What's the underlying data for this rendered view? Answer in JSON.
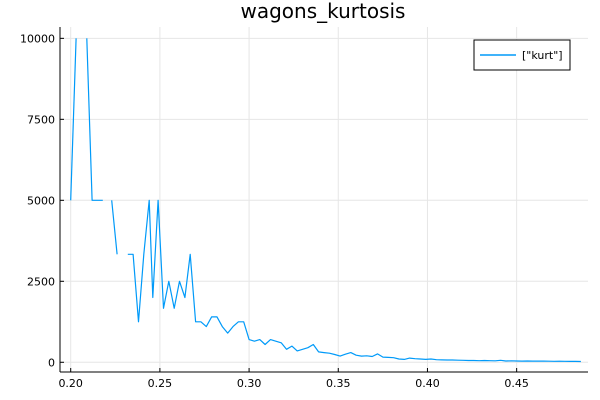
{
  "chart_data": {
    "type": "line",
    "title": "wagons_kurtosis",
    "xlabel": "",
    "ylabel": "",
    "xlim": [
      0.194,
      0.49
    ],
    "ylim": [
      -300,
      10350
    ],
    "x_ticks": [
      0.2,
      0.25,
      0.3,
      0.35,
      0.4,
      0.45
    ],
    "x_tick_labels": [
      "0.20",
      "0.25",
      "0.30",
      "0.35",
      "0.40",
      "0.45"
    ],
    "y_ticks": [
      0,
      2500,
      5000,
      7500,
      10000
    ],
    "y_tick_labels": [
      "0",
      "2500",
      "5000",
      "7500",
      "10000"
    ],
    "grid": true,
    "legend_position": "top-right",
    "series": [
      {
        "name": "[\"kurt\"]",
        "color": "#009af9",
        "segments": [
          {
            "x": [
              0.2,
              0.203
            ],
            "y": [
              5000,
              10000
            ]
          },
          {
            "x": [
              0.209,
              0.212,
              0.215,
              0.218
            ],
            "y": [
              10000,
              5000,
              5000,
              5000
            ]
          },
          {
            "x": [
              0.223,
              0.226
            ],
            "y": [
              5000,
              3333
            ]
          },
          {
            "x": [
              0.232,
              0.235,
              0.238,
              0.241,
              0.244,
              0.246,
              0.249,
              0.252,
              0.255,
              0.258,
              0.261,
              0.264,
              0.267,
              0.27,
              0.273,
              0.276,
              0.279,
              0.282,
              0.285,
              0.288,
              0.291,
              0.294,
              0.297,
              0.3,
              0.303,
              0.306,
              0.309,
              0.312,
              0.315,
              0.318,
              0.321,
              0.324,
              0.327,
              0.33,
              0.333,
              0.336,
              0.339,
              0.342,
              0.345,
              0.348,
              0.351,
              0.354,
              0.357,
              0.36,
              0.363,
              0.366,
              0.369,
              0.372,
              0.375,
              0.378,
              0.381,
              0.384,
              0.387,
              0.39,
              0.393,
              0.396,
              0.399,
              0.402,
              0.405,
              0.408,
              0.411,
              0.414,
              0.417,
              0.42,
              0.423,
              0.426,
              0.429,
              0.432,
              0.435,
              0.438,
              0.441,
              0.444,
              0.447,
              0.45,
              0.453,
              0.456,
              0.459,
              0.462,
              0.465,
              0.468,
              0.471,
              0.474,
              0.477,
              0.48,
              0.483,
              0.486
            ],
            "y": [
              3333,
              3333,
              1250,
              3333,
              5000,
              2000,
              5000,
              1667,
              2500,
              1667,
              2500,
              2000,
              3333,
              1250,
              1250,
              1100,
              1400,
              1400,
              1100,
              900,
              1100,
              1250,
              1250,
              700,
              650,
              700,
              550,
              700,
              650,
              600,
              400,
              500,
              350,
              400,
              450,
              550,
              320,
              300,
              280,
              240,
              190,
              250,
              300,
              220,
              190,
              200,
              180,
              260,
              160,
              150,
              140,
              100,
              90,
              130,
              110,
              100,
              90,
              100,
              80,
              75,
              70,
              70,
              65,
              60,
              55,
              55,
              50,
              55,
              50,
              45,
              60,
              40,
              45,
              40,
              38,
              40,
              36,
              35,
              38,
              33,
              30,
              32,
              30,
              28,
              27,
              25
            ]
          }
        ]
      }
    ]
  }
}
